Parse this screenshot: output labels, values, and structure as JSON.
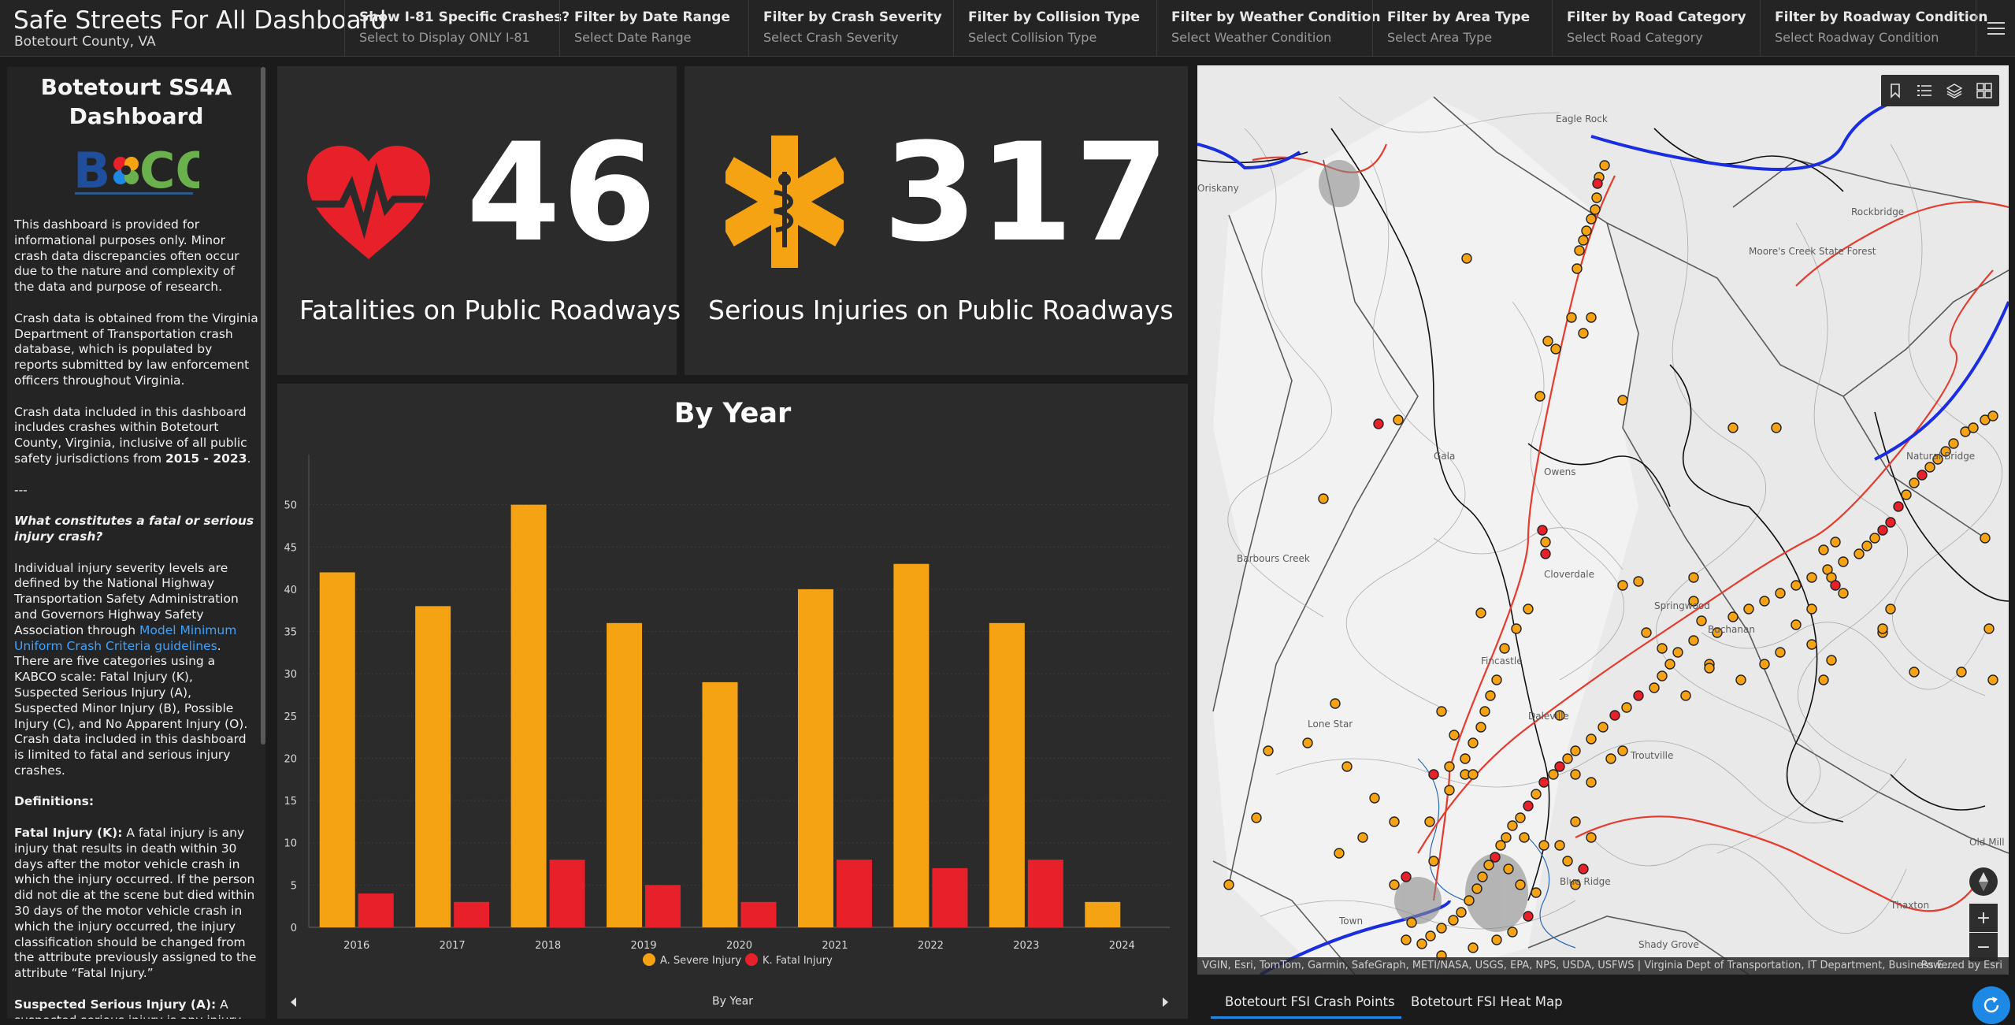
{
  "header": {
    "title": "Safe Streets For All Dashboard",
    "subtitle": "Botetourt County, VA",
    "filters": [
      {
        "label": "Show I-81 Specific Crashes?",
        "value": "Select to Display ONLY I-81"
      },
      {
        "label": "Filter by Date Range",
        "value": "Select Date Range"
      },
      {
        "label": "Filter by Crash Severity",
        "value": "Select Crash Severity"
      },
      {
        "label": "Filter by Collision Type",
        "value": "Select Collision Type"
      },
      {
        "label": "Filter by Weather Condition",
        "value": "Select Weather Condition"
      },
      {
        "label": "Filter by Area Type",
        "value": "Select Area Type"
      },
      {
        "label": "Filter by Road Category",
        "value": "Select Road Category"
      },
      {
        "label": "Filter by Roadway Condition",
        "value": "Select Roadway Condition"
      }
    ]
  },
  "sidebar": {
    "title": "Botetourt SS4A Dashboard",
    "logo_text": "BOTCO",
    "p1": "This dashboard is provided for informational purposes only. Minor crash data discrepancies often occur due to the nature and complexity of the data and purpose of research.",
    "p2": "Crash data is obtained from the Virginia Department of Transportation crash database, which is populated by reports submitted by law enforcement officers throughout Virginia.",
    "p3_a": "Crash data included in this dashboard includes crashes within Botetourt County, Virginia, inclusive of all public safety jurisdictions from ",
    "p3_b": "2015 - 2023",
    "p3_c": ".",
    "divider": "---",
    "question": "What constitutes a fatal or serious injury crash?",
    "p4_a": "Individual injury severity levels are defined by the National Highway Transportation Safety Administration and Governors Highway Safety Association through ",
    "p4_link": "Model Minimum Uniform Crash Criteria guidelines",
    "p4_b": ". There are five categories using a KABCO scale: Fatal Injury (K), Suspected Serious Injury (A), Suspected Minor Injury (B), Possible Injury (C), and No Apparent Injury (O). Crash data included in this dashboard is limited to fatal and serious injury crashes.",
    "definitions": "Definitions:",
    "fatal_term": "Fatal Injury (K):",
    "fatal_def": " A fatal injury is any injury that results in death within 30 days after the motor vehicle crash in which the injury occurred. If the person did not die at the scene but died within 30 days of the motor vehicle crash in which the injury occurred, the injury classification should be changed from the attribute previously assigned to the attribute “Fatal Injury.”",
    "serious_term": "Suspected Serious Injury (A):",
    "serious_def": " A suspected serious injury is any injury other than fatal which results in one or more of the following:"
  },
  "indicators": {
    "fatalities": {
      "value": "46",
      "caption": "Fatalities on Public Roadways",
      "icon": "heart-pulse-icon",
      "color": "#e8202a"
    },
    "serious": {
      "value": "317",
      "caption": "Serious Injuries on Public Roadways",
      "icon": "star-of-life-icon",
      "color": "#f5a312"
    }
  },
  "chart": {
    "title": "By Year",
    "footer_label": "By Year"
  },
  "chart_data": {
    "type": "bar",
    "title": "By Year",
    "categories": [
      "2016",
      "2017",
      "2018",
      "2019",
      "2020",
      "2021",
      "2022",
      "2023",
      "2024"
    ],
    "series": [
      {
        "name": "A. Severe Injury",
        "color": "#f5a312",
        "values": [
          42,
          38,
          50,
          36,
          29,
          40,
          43,
          36,
          3
        ]
      },
      {
        "name": "K. Fatal Injury",
        "color": "#e8202a",
        "values": [
          4,
          3,
          8,
          5,
          3,
          8,
          7,
          8,
          0
        ]
      }
    ],
    "yticks": [
      0,
      5,
      10,
      15,
      20,
      25,
      30,
      35,
      40,
      45,
      50
    ],
    "ylim": [
      0,
      55
    ],
    "grid": true,
    "legend": "bottom"
  },
  "map": {
    "attribution": "VGIN, Esri, TomTom, Garmin, SafeGraph, METI/NASA, USGS, EPA, NPS, USDA, USFWS | Virginia Dept of Transportation, IT Department, Business E...",
    "powered_by": "Powered by Esri",
    "places": [
      "Eagle Rock",
      "Buchanan",
      "Moore's Creek State Forest",
      "Natural Bridge",
      "Fincastle",
      "Barbours Creek",
      "Daleville",
      "Troutville",
      "Springwood",
      "Cloverdale",
      "Lone Star",
      "Blue Ridge",
      "Shady Grove",
      "Oriskany",
      "Gala",
      "Thaxton",
      "Old Mill",
      "Rockbridge",
      "Owens",
      "Town"
    ],
    "tabs": [
      "Botetourt FSI Crash Points",
      "Botetourt FSI Heat Map"
    ]
  }
}
